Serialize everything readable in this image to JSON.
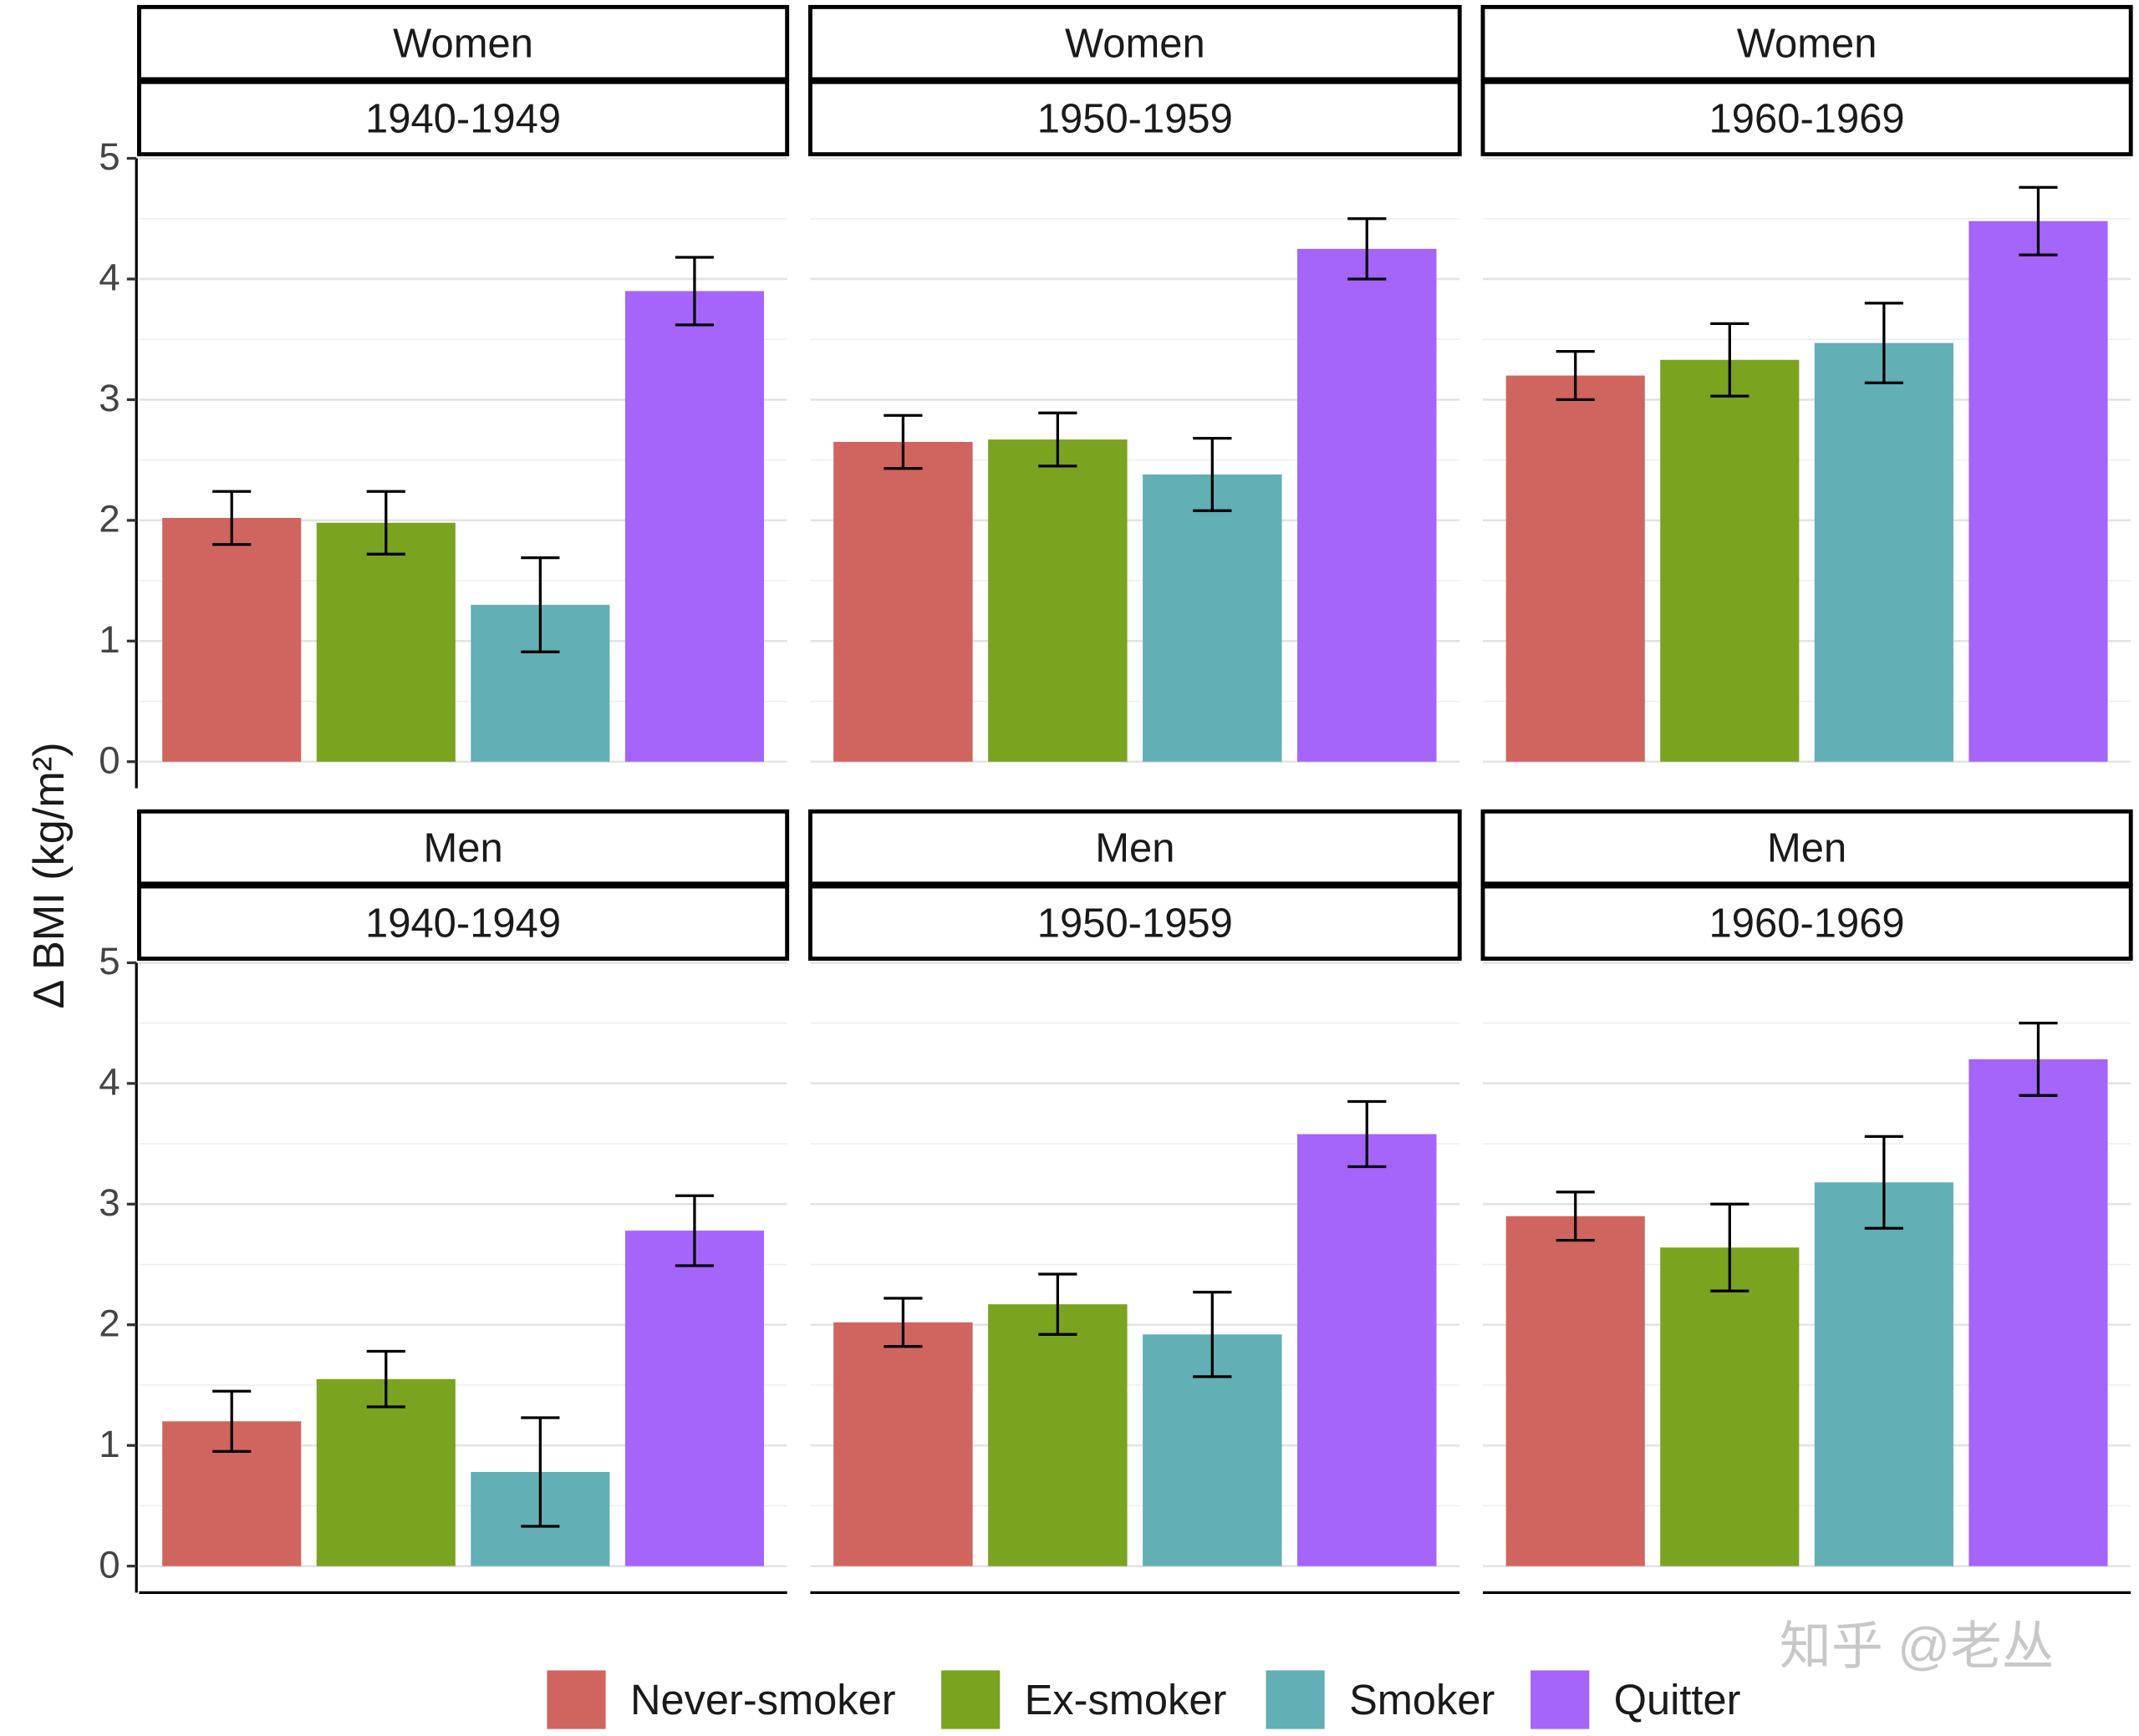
{
  "chart_data": {
    "type": "bar",
    "ylabel": "Δ BMI (kg/m²)",
    "ylim": [
      -0.22,
      5
    ],
    "yticks": [
      0,
      1,
      2,
      3,
      4,
      5
    ],
    "grid": true,
    "series": [
      {
        "name": "Never-smoker",
        "color": "#d0655f"
      },
      {
        "name": "Ex-smoker",
        "color": "#7aa31f"
      },
      {
        "name": "Smoker",
        "color": "#62afb5"
      },
      {
        "name": "Quitter",
        "color": "#a564fa"
      }
    ],
    "panels": [
      {
        "strip": [
          "Women",
          "1940-1949"
        ],
        "values": [
          2.02,
          1.98,
          1.3,
          3.9
        ],
        "errors": [
          0.22,
          0.26,
          0.39,
          0.28
        ]
      },
      {
        "strip": [
          "Women",
          "1950-1959"
        ],
        "values": [
          2.65,
          2.67,
          2.38,
          4.25
        ],
        "errors": [
          0.22,
          0.22,
          0.3,
          0.25
        ]
      },
      {
        "strip": [
          "Women",
          "1960-1969"
        ],
        "values": [
          3.2,
          3.33,
          3.47,
          4.48
        ],
        "errors": [
          0.2,
          0.3,
          0.33,
          0.28
        ]
      },
      {
        "strip": [
          "Men",
          "1940-1949"
        ],
        "values": [
          1.2,
          1.55,
          0.78,
          2.78
        ],
        "errors": [
          0.25,
          0.23,
          0.45,
          0.29
        ]
      },
      {
        "strip": [
          "Men",
          "1950-1959"
        ],
        "values": [
          2.02,
          2.17,
          1.92,
          3.58
        ],
        "errors": [
          0.2,
          0.25,
          0.35,
          0.27
        ]
      },
      {
        "strip": [
          "Men",
          "1960-1969"
        ],
        "values": [
          2.9,
          2.64,
          3.18,
          4.2
        ],
        "errors": [
          0.2,
          0.36,
          0.38,
          0.3
        ]
      }
    ]
  },
  "watermark": "知乎 @老丛"
}
